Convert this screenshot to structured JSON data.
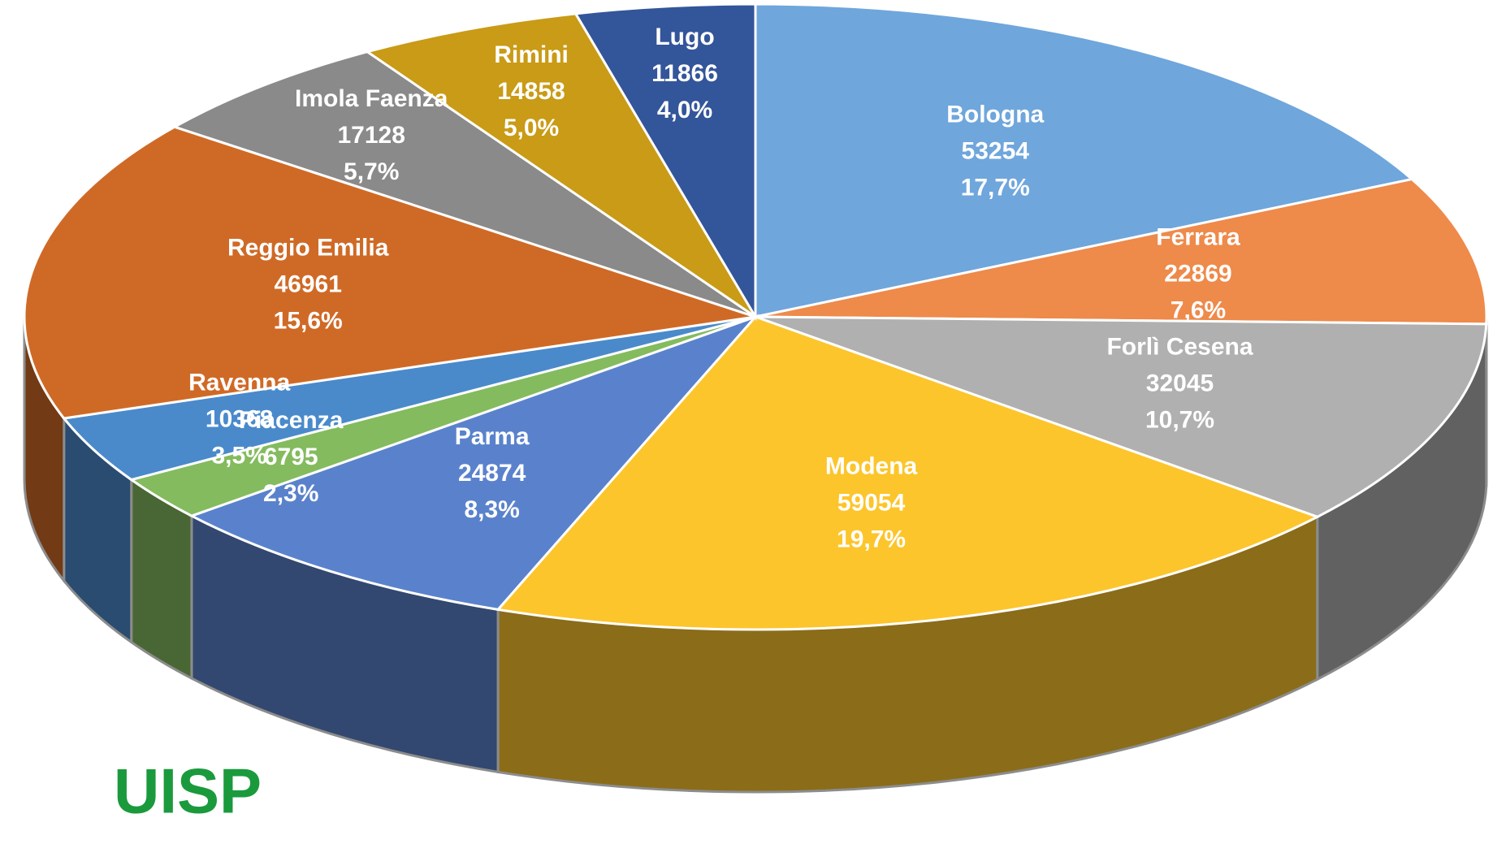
{
  "chart_data": {
    "type": "pie3d",
    "categories": [
      "Bologna",
      "Ferrara",
      "Forlì Cesena",
      "Modena",
      "Parma",
      "Piacenza",
      "Ravenna",
      "Reggio Emilia",
      "Imola Faenza",
      "Rimini",
      "Lugo"
    ],
    "values": [
      53254,
      22869,
      32045,
      59054,
      24874,
      6795,
      10368,
      46961,
      17128,
      14858,
      11866
    ],
    "percent_labels": [
      "17,7%",
      "7,6%",
      "10,7%",
      "19,7%",
      "8,3%",
      "2,3%",
      "3,5%",
      "15,6%",
      "5,7%",
      "5,0%",
      "4,0%"
    ],
    "colors": [
      "#6fa6dc",
      "#ee8a4a",
      "#b0b0b0",
      "#fcc52c",
      "#5a82cc",
      "#84bb5e",
      "#4a8acb",
      "#cf6a26",
      "#8a8a8a",
      "#c99b16",
      "#33559a"
    ]
  },
  "logo": "UISP"
}
